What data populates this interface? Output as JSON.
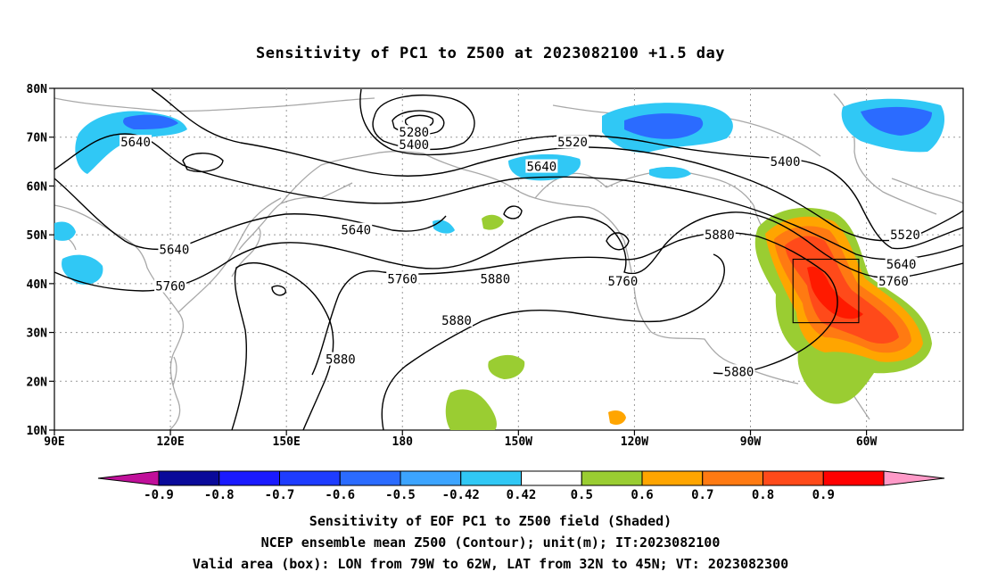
{
  "title": "Sensitivity of PC1 to Z500 at 2023082100 +1.5 day",
  "chart_data": {
    "type": "heatmap",
    "lat_ticks": [
      "80N",
      "70N",
      "60N",
      "50N",
      "40N",
      "30N",
      "20N",
      "10N"
    ],
    "lon_ticks": [
      "90E",
      "120E",
      "150E",
      "180",
      "150W",
      "120W",
      "90W",
      "60W"
    ],
    "lon_range_east": [
      90,
      325
    ],
    "lat_range": [
      10,
      80
    ],
    "grid": true,
    "contour_labels": [
      {
        "text": "5640",
        "lon": 111,
        "lat": 69
      },
      {
        "text": "5280",
        "lon": 183,
        "lat": 71
      },
      {
        "text": "5400",
        "lon": 183,
        "lat": 68.5
      },
      {
        "text": "5520",
        "lon": 224,
        "lat": 69
      },
      {
        "text": "5640",
        "lon": 216,
        "lat": 64
      },
      {
        "text": "5400",
        "lon": 279,
        "lat": 65
      },
      {
        "text": "5640",
        "lon": 121,
        "lat": 47
      },
      {
        "text": "5640",
        "lon": 168,
        "lat": 51
      },
      {
        "text": "5760",
        "lon": 120,
        "lat": 39.5
      },
      {
        "text": "5760",
        "lon": 180,
        "lat": 41
      },
      {
        "text": "5880",
        "lon": 204,
        "lat": 41
      },
      {
        "text": "5760",
        "lon": 237,
        "lat": 40.5
      },
      {
        "text": "5880",
        "lon": 262,
        "lat": 50
      },
      {
        "text": "5520",
        "lon": 310,
        "lat": 50
      },
      {
        "text": "5640",
        "lon": 309,
        "lat": 44
      },
      {
        "text": "5760",
        "lon": 307,
        "lat": 40.5
      },
      {
        "text": "5880",
        "lon": 194,
        "lat": 32.5
      },
      {
        "text": "5880",
        "lon": 164,
        "lat": 24.5
      },
      {
        "text": "5880",
        "lon": 267,
        "lat": 22
      }
    ],
    "valid_box": {
      "lon": [
        281,
        298
      ],
      "lat": [
        32,
        45
      ]
    },
    "colorbar": {
      "labels": [
        "-0.9",
        "-0.8",
        "-0.7",
        "-0.6",
        "-0.5",
        "-0.42",
        "0.42",
        "0.5",
        "0.6",
        "0.7",
        "0.8",
        "0.9"
      ],
      "colors": [
        "#0a0a9a",
        "#1a1aff",
        "#1e3cff",
        "#2b6bff",
        "#3ca4ff",
        "#30c8f5",
        "#ffffff",
        "#9acd32",
        "#ffa500",
        "#ff7a12",
        "#ff4a1a",
        "#ff0000"
      ],
      "end_low": "#c0109a",
      "end_high": "#ff9ac8"
    }
  },
  "footer": {
    "line1": "Sensitivity of EOF PC1 to Z500 field (Shaded)",
    "line2": "NCEP ensemble mean Z500 (Contour); unit(m); IT:2023082100",
    "line3": "Valid area (box): LON from 79W to 62W, LAT from 32N to 45N; VT: 2023082300"
  }
}
